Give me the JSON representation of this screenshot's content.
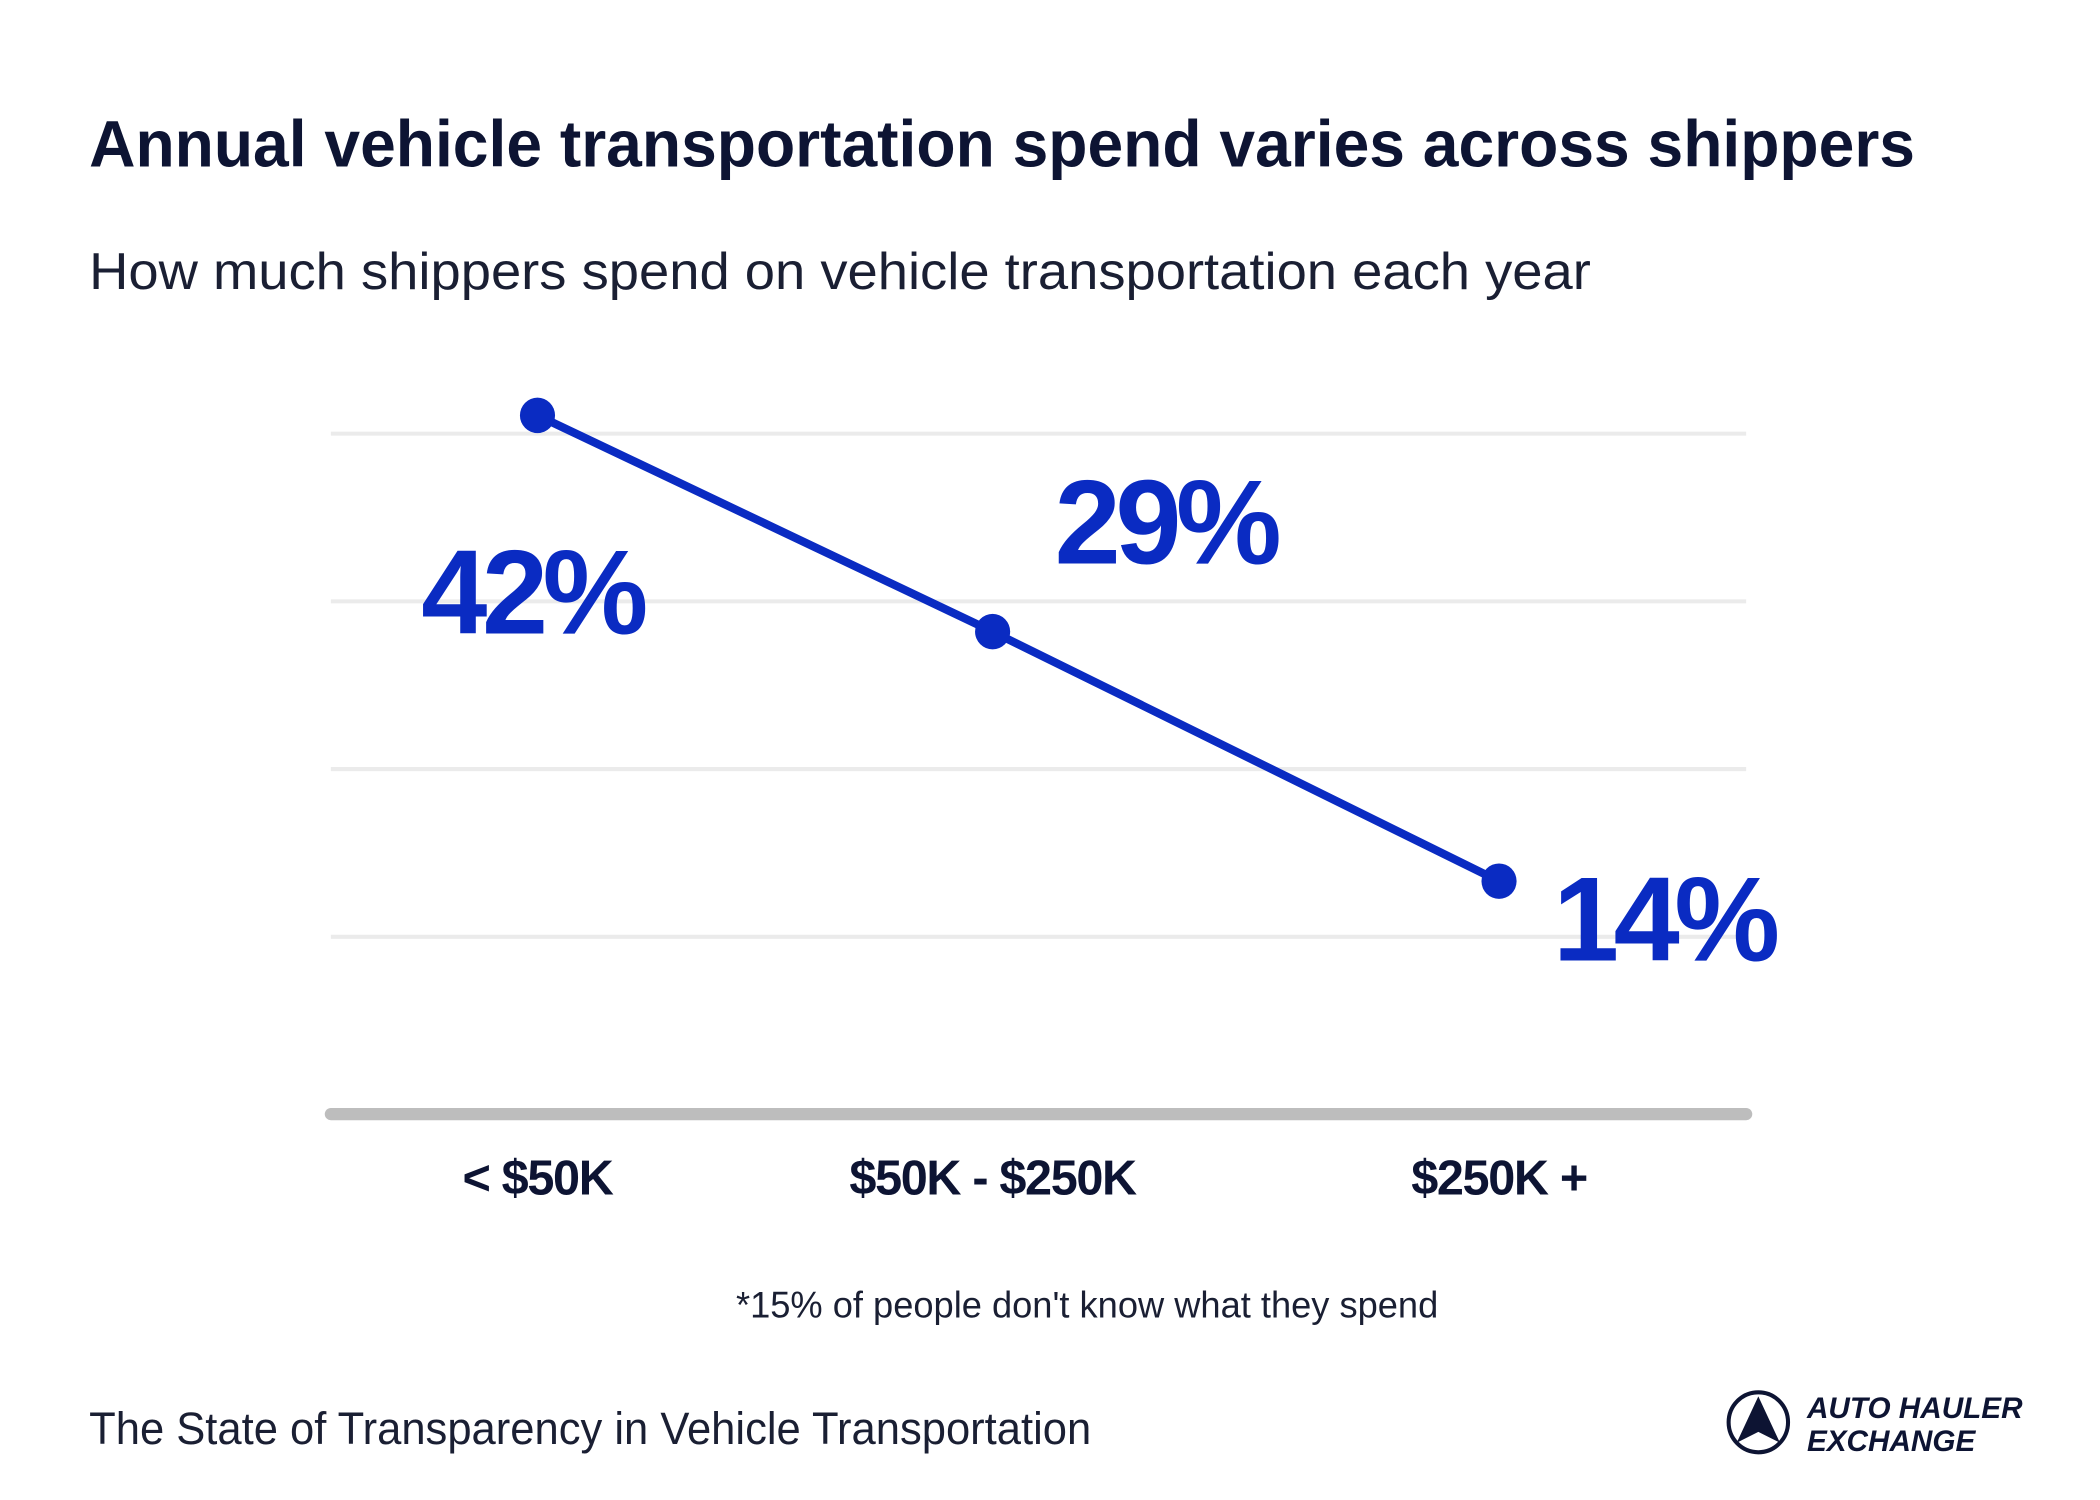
{
  "chart_data": {
    "type": "line",
    "title": "Annual vehicle transportation spend varies across shippers",
    "subtitle": "How much shippers spend on vehicle transportation each year",
    "categories": [
      "< $50K",
      "$50K - $250K",
      "$250K +"
    ],
    "values": [
      42,
      29,
      14
    ],
    "value_labels": [
      "42%",
      "29%",
      "14%"
    ],
    "color": "#0a2bc2",
    "ylim": [
      0,
      45
    ],
    "footnote": "*15% of people don't know what they spend",
    "source": "The State of Transparency in Vehicle Transportation"
  },
  "logo": {
    "lines": [
      "AUTO HAULER",
      "EXCHANGE"
    ]
  }
}
